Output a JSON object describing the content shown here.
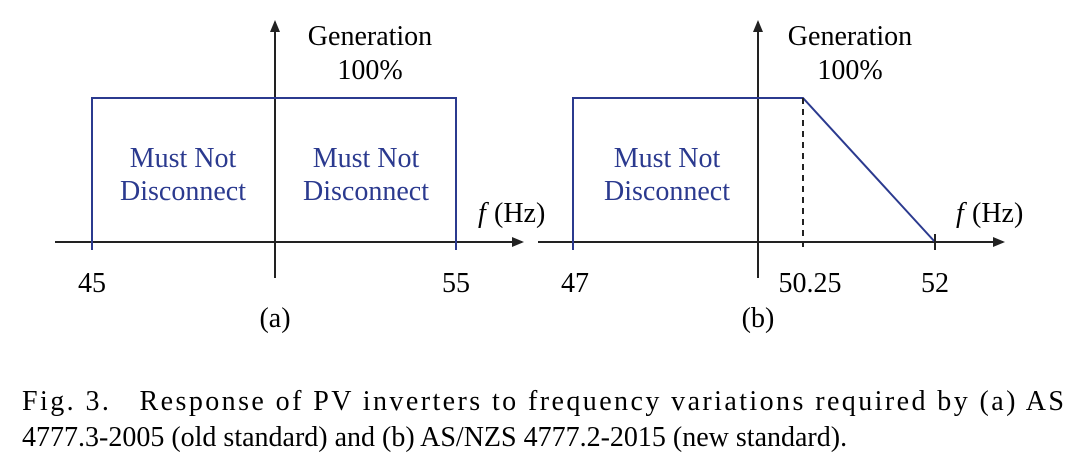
{
  "figure": {
    "panels": [
      {
        "y_label": "Generation",
        "y_level": "100%",
        "x_symbol": "f",
        "x_unit": "(Hz)",
        "regions": [
          {
            "lines": [
              "Must Not",
              "Disconnect"
            ]
          },
          {
            "lines": [
              "Must Not",
              "Disconnect"
            ]
          }
        ],
        "ticks": [
          "45",
          "55"
        ],
        "label": "(a)"
      },
      {
        "y_label": "Generation",
        "y_level": "100%",
        "x_symbol": "f",
        "x_unit": "(Hz)",
        "regions": [
          {
            "lines": [
              "Must Not",
              "Disconnect"
            ]
          }
        ],
        "ticks": [
          "47",
          "50.25",
          "52"
        ],
        "label": "(b)"
      }
    ],
    "caption": {
      "lines": [
        "Fig. 3.   Response of PV inverters to frequency variations required by (a) AS",
        "4777.3-2005 (old standard) and (b) AS/NZS 4777.2-2015 (new standard)."
      ]
    }
  }
}
